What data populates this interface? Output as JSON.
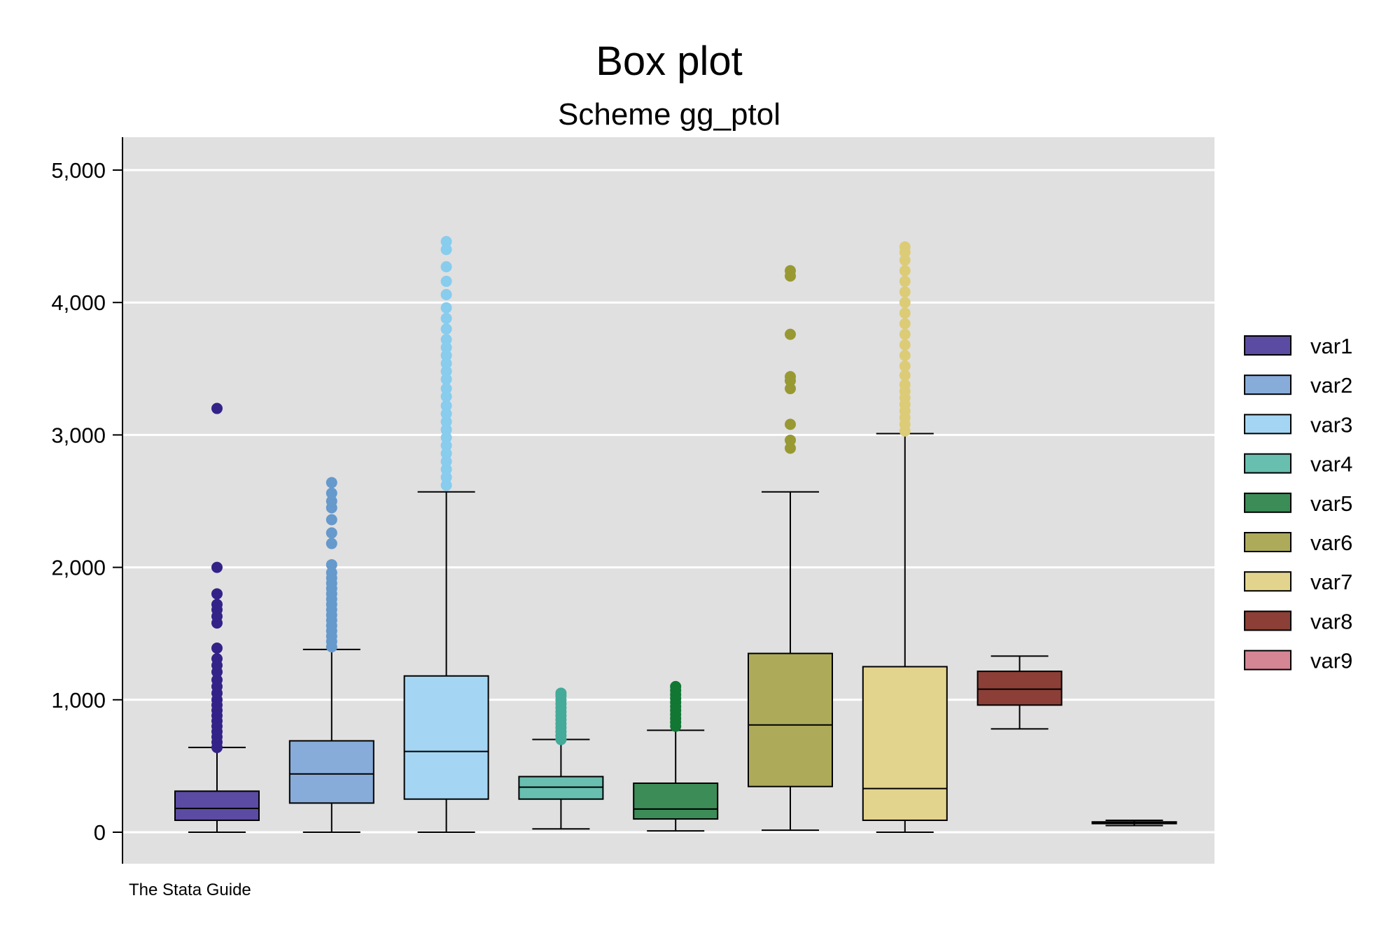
{
  "chart_data": {
    "type": "box",
    "title": "Box plot",
    "subtitle": "Scheme gg_ptol",
    "note": "The Stata Guide",
    "xlabel": "",
    "ylabel": "",
    "ylim": [
      -250,
      5250
    ],
    "yticks": [
      0,
      1000,
      2000,
      3000,
      4000,
      5000
    ],
    "ytick_labels": [
      "0",
      "1,000",
      "2,000",
      "3,000",
      "4,000",
      "5,000"
    ],
    "grid": true,
    "legend_position": "right",
    "series": [
      {
        "name": "var1",
        "color": "#5c4ba3",
        "outlier_color": "#332288",
        "min": 0,
        "q1": 90,
        "median": 180,
        "q3": 310,
        "max": 640,
        "outliers": [
          640,
          680,
          720,
          760,
          800,
          840,
          880,
          920,
          960,
          1000,
          1050,
          1100,
          1150,
          1210,
          1260,
          1310,
          1390,
          1580,
          1630,
          1680,
          1720,
          1800,
          2000,
          3200
        ]
      },
      {
        "name": "var2",
        "color": "#87acd9",
        "outlier_color": "#6699cc",
        "min": 0,
        "q1": 220,
        "median": 440,
        "q3": 690,
        "max": 1380,
        "outliers": [
          1400,
          1440,
          1480,
          1520,
          1560,
          1600,
          1640,
          1680,
          1720,
          1760,
          1800,
          1840,
          1880,
          1920,
          1960,
          2020,
          2180,
          2260,
          2360,
          2450,
          2500,
          2560,
          2640
        ]
      },
      {
        "name": "var3",
        "color": "#a4d6f3",
        "outlier_color": "#88ccee",
        "min": 0,
        "q1": 250,
        "median": 610,
        "q3": 1180,
        "max": 2570,
        "outliers": [
          2620,
          2680,
          2740,
          2800,
          2860,
          2920,
          2980,
          3040,
          3100,
          3160,
          3220,
          3290,
          3350,
          3420,
          3480,
          3540,
          3600,
          3660,
          3720,
          3800,
          3880,
          3960,
          4060,
          4160,
          4270,
          4400,
          4460
        ]
      },
      {
        "name": "var4",
        "color": "#68bfaf",
        "outlier_color": "#44aa99",
        "min": 25,
        "q1": 250,
        "median": 340,
        "q3": 420,
        "max": 700,
        "outliers": [
          700,
          730,
          760,
          790,
          820,
          850,
          880,
          910,
          940,
          970,
          1000,
          1030,
          1050
        ]
      },
      {
        "name": "var5",
        "color": "#3c8c58",
        "outlier_color": "#117733",
        "min": 10,
        "q1": 100,
        "median": 175,
        "q3": 370,
        "max": 770,
        "outliers": [
          800,
          830,
          860,
          890,
          920,
          950,
          980,
          1010,
          1040,
          1070,
          1100
        ]
      },
      {
        "name": "var6",
        "color": "#adab5a",
        "outlier_color": "#999933",
        "min": 15,
        "q1": 345,
        "median": 810,
        "q3": 1350,
        "max": 2570,
        "outliers": [
          2900,
          2960,
          3080,
          3350,
          3410,
          3440,
          3760,
          4200,
          4240
        ]
      },
      {
        "name": "var7",
        "color": "#e3d48d",
        "outlier_color": "#ddcc77",
        "min": 0,
        "q1": 90,
        "median": 330,
        "q3": 1250,
        "max": 3010,
        "outliers": [
          3030,
          3080,
          3130,
          3180,
          3230,
          3280,
          3330,
          3380,
          3450,
          3520,
          3600,
          3680,
          3760,
          3840,
          3920,
          4000,
          4080,
          4160,
          4240,
          4320,
          4380,
          4420
        ]
      },
      {
        "name": "var8",
        "color": "#8c3f36",
        "outlier_color": "#882255",
        "min": 780,
        "q1": 960,
        "median": 1080,
        "q3": 1215,
        "max": 1330,
        "outliers": []
      },
      {
        "name": "var9",
        "color": "#d48695",
        "outlier_color": "#cc6677",
        "min": 50,
        "q1": 65,
        "median": 72,
        "q3": 78,
        "max": 90,
        "outliers": []
      }
    ]
  }
}
